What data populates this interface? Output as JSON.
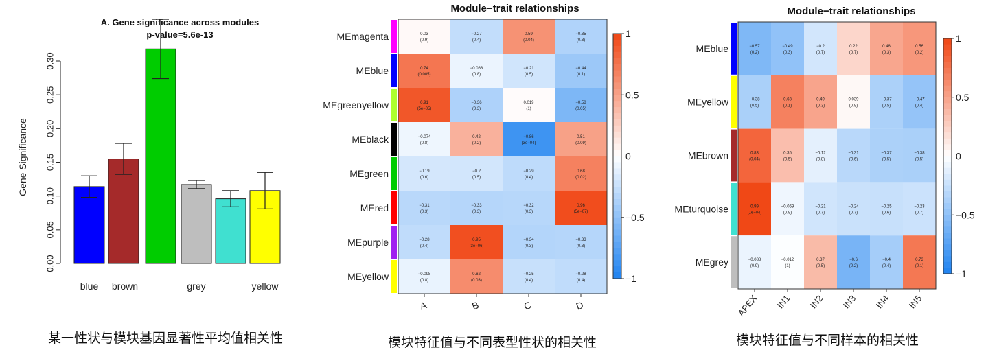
{
  "captions": {
    "left": "某一性状与模块基因显著性平均值相关性",
    "middle": "模块特征值与不同表型性状的相关性",
    "right": "模块特征值与不同样本的相关性"
  },
  "chart_data": [
    {
      "type": "bar",
      "title": "A. Gene significance across modules",
      "subtitle": "p-value=5.6e-13",
      "ylabel": "Gene Significance",
      "xlabel": "",
      "ylim": [
        0,
        0.32
      ],
      "yticks": [
        "0.00",
        "0.05",
        "0.10",
        "0.15",
        "0.20",
        "0.25",
        "0.30"
      ],
      "categories": [
        "blue",
        "brown",
        "green",
        "grey",
        "turquoise",
        "yellow"
      ],
      "category_labels_shown": [
        "blue",
        "brown",
        "",
        "grey",
        "",
        "yellow"
      ],
      "values": [
        0.114,
        0.155,
        0.318,
        0.117,
        0.096,
        0.108
      ],
      "error": [
        0.016,
        0.023,
        0.044,
        0.006,
        0.012,
        0.027
      ],
      "colors": [
        "#0000ff",
        "#a52a2a",
        "#00cc00",
        "#bebebe",
        "#40e0d0",
        "#ffff00"
      ],
      "grid": false
    },
    {
      "type": "heatmap",
      "title": "Module−trait relationships",
      "rows": [
        "MEmagenta",
        "MEblue",
        "MEgreenyellow",
        "MEblack",
        "MEgreen",
        "MEred",
        "MEpurple",
        "MEyellow"
      ],
      "row_colors": [
        "#ff00ff",
        "#0000ff",
        "#adff2f",
        "#000000",
        "#00cc00",
        "#ff0000",
        "#a020f0",
        "#ffff00"
      ],
      "cols": [
        "A",
        "B",
        "C",
        "D"
      ],
      "values": [
        [
          0.03,
          -0.27,
          0.59,
          -0.35
        ],
        [
          0.74,
          -0.088,
          -0.21,
          -0.44
        ],
        [
          0.91,
          -0.36,
          0.019,
          -0.58
        ],
        [
          -0.074,
          0.42,
          -0.86,
          0.51
        ],
        [
          -0.19,
          -0.2,
          -0.29,
          0.68
        ],
        [
          -0.31,
          -0.33,
          -0.32,
          0.96
        ],
        [
          -0.28,
          0.95,
          -0.34,
          -0.33
        ],
        [
          -0.098,
          0.62,
          -0.25,
          -0.28
        ]
      ],
      "pvalues": [
        [
          "(0.9)",
          "(0.4)",
          "(0.04)",
          "(0.3)"
        ],
        [
          "(0.005)",
          "(0.8)",
          "(0.5)",
          "(0.1)"
        ],
        [
          "(5e−05)",
          "(0.3)",
          "(1)",
          "(0.05)"
        ],
        [
          "(0.8)",
          "(0.2)",
          "(3e−04)",
          "(0.09)"
        ],
        [
          "(0.6)",
          "(0.5)",
          "(0.4)",
          "(0.02)"
        ],
        [
          "(0.3)",
          "(0.3)",
          "(0.3)",
          "(5e−07)"
        ],
        [
          "(0.4)",
          "(3e−06)",
          "(0.3)",
          "(0.3)"
        ],
        [
          "(0.8)",
          "(0.03)",
          "(0.4)",
          "(0.4)"
        ]
      ],
      "colorbar_ticks": [
        "1",
        "0.5",
        "0",
        "−0.5",
        "−1"
      ],
      "colorbar_values": [
        1,
        0.5,
        0,
        -0.5,
        -1
      ],
      "range": [
        -1,
        1
      ]
    },
    {
      "type": "heatmap",
      "title": "Module−trait relationships",
      "rows": [
        "MEblue",
        "MEyellow",
        "MEbrown",
        "MEturquoise",
        "MEgrey"
      ],
      "row_colors": [
        "#0000ff",
        "#ffff00",
        "#a52a2a",
        "#40e0d0",
        "#bebebe"
      ],
      "cols": [
        "APEX",
        "IN1",
        "IN2",
        "IN3",
        "IN4",
        "IN5"
      ],
      "values": [
        [
          -0.57,
          -0.49,
          -0.2,
          0.22,
          0.48,
          0.56
        ],
        [
          -0.38,
          0.68,
          0.49,
          0.039,
          -0.37,
          -0.47
        ],
        [
          0.83,
          0.35,
          -0.12,
          -0.31,
          -0.37,
          -0.38
        ],
        [
          0.99,
          -0.069,
          -0.21,
          -0.24,
          -0.25,
          -0.23
        ],
        [
          -0.088,
          -0.012,
          0.37,
          -0.6,
          -0.4,
          0.73
        ]
      ],
      "pvalues": [
        [
          "(0.2)",
          "(0.3)",
          "(0.7)",
          "(0.7)",
          "(0.3)",
          "(0.2)"
        ],
        [
          "(0.5)",
          "(0.1)",
          "(0.3)",
          "(0.9)",
          "(0.5)",
          "(0.4)"
        ],
        [
          "(0.04)",
          "(0.5)",
          "(0.8)",
          "(0.6)",
          "(0.5)",
          "(0.5)"
        ],
        [
          "(1e−04)",
          "(0.9)",
          "(0.7)",
          "(0.7)",
          "(0.6)",
          "(0.7)"
        ],
        [
          "(0.9)",
          "(1)",
          "(0.5)",
          "(0.2)",
          "(0.4)",
          "(0.1)"
        ]
      ],
      "colorbar_ticks": [
        "1",
        "0.5",
        "0",
        "−0.5",
        "−1"
      ],
      "colorbar_values": [
        1,
        0.5,
        0,
        -0.5,
        -1
      ],
      "range": [
        -1,
        1
      ]
    }
  ]
}
